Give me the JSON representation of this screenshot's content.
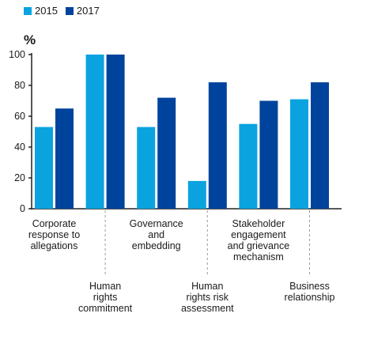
{
  "chart_data": {
    "type": "bar",
    "unit_label": "%",
    "categories": [
      [
        "Corporate",
        "response to",
        "allegations"
      ],
      [
        "Human",
        "rights",
        "commitment"
      ],
      [
        "Governance",
        "and",
        "embedding"
      ],
      [
        "Human",
        "rights risk",
        "assessment"
      ],
      [
        "Stakeholder",
        "engagement",
        "and grievance",
        "mechanism"
      ],
      [
        "Business",
        "relationship"
      ]
    ],
    "series": [
      {
        "name": "2015",
        "color": "#0aa3e0",
        "values": [
          53,
          100,
          53,
          18,
          55,
          71
        ]
      },
      {
        "name": "2017",
        "color": "#00439c",
        "values": [
          65,
          100,
          72,
          82,
          70,
          82
        ]
      }
    ],
    "ylim": [
      0,
      100
    ],
    "yticks": [
      0,
      20,
      40,
      60,
      80,
      100
    ],
    "legend_position": "top-left",
    "grid": false
  }
}
